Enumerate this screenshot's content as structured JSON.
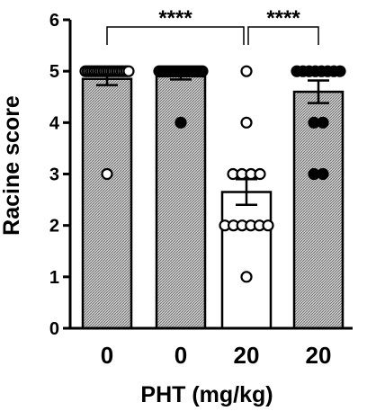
{
  "chart_data": {
    "type": "bar",
    "ylabel": "Racine score",
    "xlabel": "PHT (mg/kg)",
    "ylim": [
      0,
      6
    ],
    "yticks": [
      0,
      1,
      2,
      3,
      4,
      5,
      6
    ],
    "categories": [
      "0",
      "0",
      "20",
      "20"
    ],
    "bars": [
      {
        "value": 4.85,
        "sem": 0.12,
        "fill": "hatched",
        "points": [
          5,
          5,
          5,
          5,
          5,
          5,
          5,
          5,
          5,
          5,
          5,
          5,
          5,
          5,
          5,
          5,
          5,
          5,
          5,
          5,
          3
        ],
        "point_fill": "open"
      },
      {
        "value": 4.9,
        "sem": 0.06,
        "fill": "hatched",
        "points": [
          5,
          5,
          5,
          5,
          5,
          5,
          5,
          5,
          5,
          5,
          5,
          5,
          5,
          5,
          5,
          5,
          5,
          5,
          5,
          4
        ],
        "point_fill": "filled"
      },
      {
        "value": 2.65,
        "sem": 0.25,
        "fill": "white",
        "points": [
          5,
          4,
          3,
          3,
          3,
          3,
          2,
          2,
          2,
          2,
          2,
          2,
          1
        ],
        "point_fill": "open"
      },
      {
        "value": 4.6,
        "sem": 0.22,
        "fill": "hatched",
        "points": [
          5,
          5,
          5,
          5,
          5,
          5,
          5,
          5,
          4,
          4,
          3,
          3
        ],
        "point_fill": "filled"
      }
    ],
    "significance": [
      {
        "from": 0,
        "to": 2,
        "label": "****"
      },
      {
        "from": 2,
        "to": 3,
        "label": "****"
      }
    ]
  }
}
